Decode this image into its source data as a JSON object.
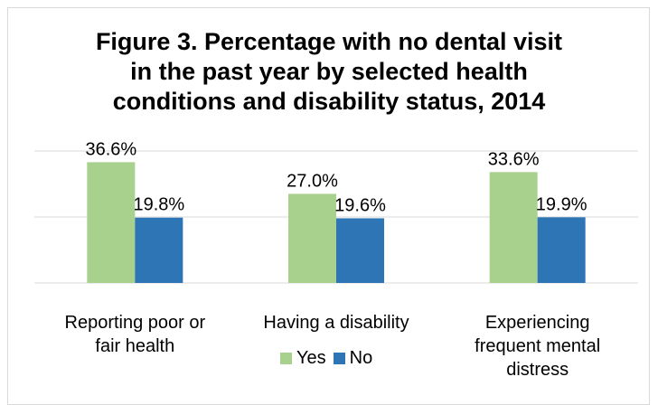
{
  "chart_data": {
    "type": "bar",
    "title_lines": [
      "Figure 3. Percentage with no dental visit",
      "in the past year by selected health",
      "conditions and disability status, 2014"
    ],
    "categories": [
      [
        "Reporting poor or",
        "fair health"
      ],
      [
        "Having a disability"
      ],
      [
        "Experiencing",
        "frequent mental",
        "distress"
      ]
    ],
    "series": [
      {
        "name": "Yes",
        "color": "#a9d18e",
        "values": [
          36.6,
          27.0,
          33.6
        ],
        "labels": [
          "36.6%",
          "27.0%",
          "33.6%"
        ]
      },
      {
        "name": "No",
        "color": "#2e75b6",
        "values": [
          19.8,
          19.6,
          19.9
        ],
        "labels": [
          "19.8%",
          "19.6%",
          "19.9%"
        ]
      }
    ],
    "ylim": [
      0,
      40
    ],
    "grid": true,
    "legend_position": "bottom"
  }
}
